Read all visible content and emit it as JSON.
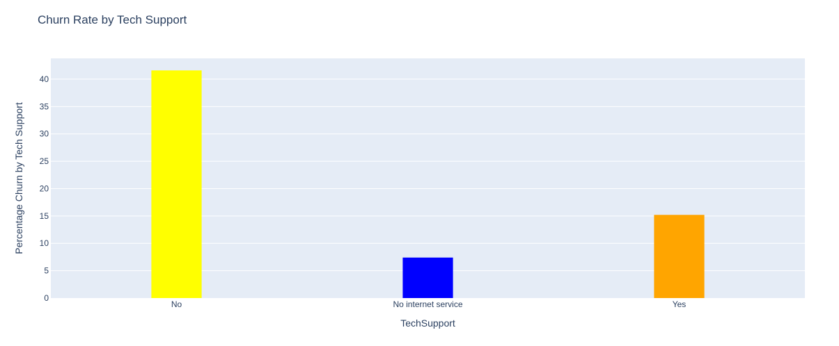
{
  "chart_data": {
    "type": "bar",
    "title": "Churn Rate by Tech Support",
    "xlabel": "TechSupport",
    "ylabel": "Percentage Churn by Tech Support",
    "categories": [
      "No",
      "No internet service",
      "Yes"
    ],
    "values": [
      41.6,
      7.4,
      15.2
    ],
    "colors": [
      "#ffff00",
      "#0000ff",
      "#ffa500"
    ],
    "ylim": [
      0,
      43.8
    ],
    "yticks": [
      0,
      5,
      10,
      15,
      20,
      25,
      30,
      35,
      40
    ],
    "grid": true,
    "legend": "none",
    "plot_background": "#e5ecf6"
  }
}
